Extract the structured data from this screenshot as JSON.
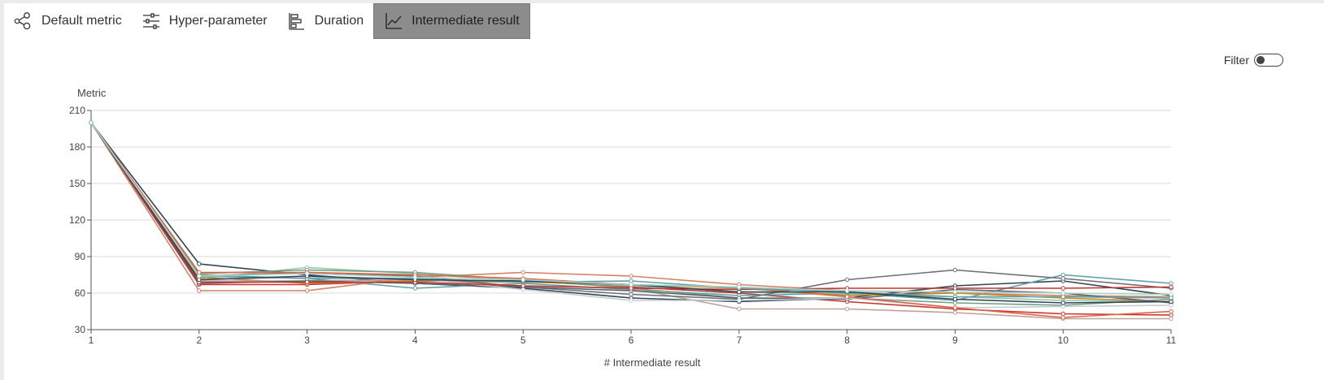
{
  "tabs": [
    {
      "label": "Default metric",
      "icon": "nodes-icon",
      "active": false
    },
    {
      "label": "Hyper-parameter",
      "icon": "sliders-icon",
      "active": false
    },
    {
      "label": "Duration",
      "icon": "bar-list-icon",
      "active": false
    },
    {
      "label": "Intermediate result",
      "icon": "line-chart-icon",
      "active": true
    }
  ],
  "filter": {
    "label": "Filter",
    "enabled": false
  },
  "chart_data": {
    "type": "line",
    "title": "",
    "ylabel": "Metric",
    "xlabel": "# Intermediate result",
    "x": [
      1,
      2,
      3,
      4,
      5,
      6,
      7,
      8,
      9,
      10,
      11
    ],
    "xlim": [
      1,
      11
    ],
    "ylim": [
      30,
      210
    ],
    "yticks": [
      30,
      60,
      90,
      120,
      150,
      180,
      210
    ],
    "grid": true,
    "legend": "none",
    "series": [
      {
        "color": "#2f4554",
        "values": [
          200,
          84,
          75,
          68,
          64,
          56,
          53,
          56,
          66,
          70,
          58
        ]
      },
      {
        "color": "#c23531",
        "values": [
          200,
          67,
          67,
          70,
          70,
          65,
          60,
          53,
          47,
          43,
          42
        ]
      },
      {
        "color": "#61a0a8",
        "values": [
          200,
          75,
          72,
          64,
          68,
          63,
          58,
          60,
          54,
          75,
          68
        ]
      },
      {
        "color": "#d48265",
        "values": [
          200,
          62,
          62,
          73,
          77,
          74,
          67,
          62,
          60,
          58,
          57
        ]
      },
      {
        "color": "#91c7ae",
        "values": [
          200,
          72,
          81,
          76,
          70,
          66,
          61,
          59,
          57,
          54,
          53
        ]
      },
      {
        "color": "#749f83",
        "values": [
          200,
          76,
          79,
          77,
          71,
          64,
          56,
          56,
          52,
          50,
          55
        ]
      },
      {
        "color": "#ca8622",
        "values": [
          200,
          73,
          68,
          70,
          69,
          67,
          64,
          58,
          60,
          56,
          53
        ]
      },
      {
        "color": "#bda29a",
        "values": [
          200,
          70,
          70,
          71,
          66,
          64,
          47,
          47,
          44,
          39,
          39
        ]
      },
      {
        "color": "#6e7074",
        "values": [
          200,
          74,
          77,
          74,
          65,
          59,
          55,
          71,
          79,
          72,
          64
        ]
      },
      {
        "color": "#546570",
        "values": [
          200,
          68,
          70,
          68,
          65,
          62,
          56,
          55,
          63,
          60,
          52
        ]
      },
      {
        "color": "#c4ccd3",
        "values": [
          200,
          71,
          73,
          72,
          63,
          54,
          54,
          56,
          48,
          49,
          50
        ]
      },
      {
        "color": "#c23531",
        "values": [
          200,
          69,
          69,
          69,
          66,
          64,
          63,
          64,
          64,
          64,
          65
        ]
      },
      {
        "color": "#e06343",
        "values": [
          200,
          77,
          77,
          75,
          72,
          67,
          65,
          57,
          48,
          40,
          45
        ]
      },
      {
        "color": "#61a0a8",
        "values": [
          200,
          74,
          72,
          72,
          69,
          70,
          64,
          61,
          57,
          57,
          56
        ]
      },
      {
        "color": "#2f4554",
        "values": [
          200,
          71,
          74,
          71,
          70,
          67,
          61,
          61,
          55,
          52,
          53
        ]
      },
      {
        "color": "#a7d6c9",
        "values": [
          200,
          74,
          76,
          73,
          71,
          67,
          65,
          62,
          61,
          60,
          59
        ]
      }
    ]
  }
}
